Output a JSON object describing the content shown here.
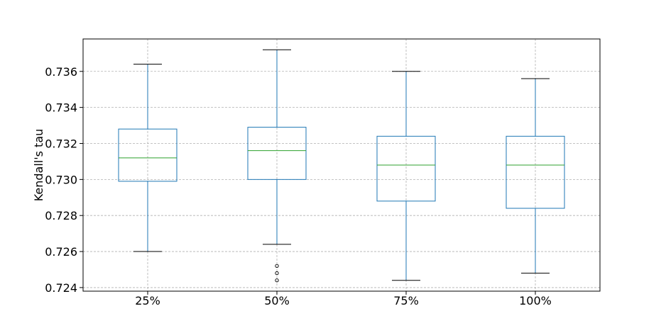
{
  "chart_data": {
    "type": "box",
    "title": "",
    "xlabel": "",
    "ylabel": "Kendall's tau",
    "ylim": [
      0.7238,
      0.7378
    ],
    "yticks": [
      0.724,
      0.726,
      0.728,
      0.73,
      0.732,
      0.734,
      0.736
    ],
    "ytick_labels": [
      "0.724",
      "0.726",
      "0.728",
      "0.730",
      "0.732",
      "0.734",
      "0.736"
    ],
    "grid": true,
    "categories": [
      "25%",
      "50%",
      "75%",
      "100%"
    ],
    "boxes": [
      {
        "category": "25%",
        "whisker_low": 0.726,
        "q1": 0.7299,
        "median": 0.7312,
        "q3": 0.7328,
        "whisker_high": 0.7364,
        "outliers": []
      },
      {
        "category": "50%",
        "whisker_low": 0.7264,
        "q1": 0.73,
        "median": 0.7316,
        "q3": 0.7329,
        "whisker_high": 0.7372,
        "outliers": [
          0.7252,
          0.7248,
          0.7244
        ]
      },
      {
        "category": "75%",
        "whisker_low": 0.7244,
        "q1": 0.7288,
        "median": 0.7308,
        "q3": 0.7324,
        "whisker_high": 0.736,
        "outliers": []
      },
      {
        "category": "100%",
        "whisker_low": 0.7248,
        "q1": 0.7284,
        "median": 0.7308,
        "q3": 0.7324,
        "whisker_high": 0.7356,
        "outliers": []
      }
    ],
    "colors": {
      "box": "#1f77b4",
      "median": "#2ca02c",
      "cap": "#000000",
      "grid": "#b0b0b0",
      "frame": "#000000"
    }
  }
}
